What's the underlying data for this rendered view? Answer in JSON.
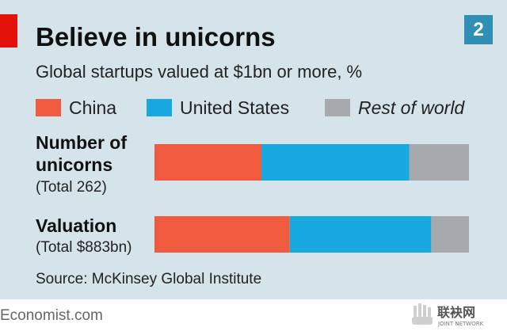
{
  "header": {
    "title": "Believe in unicorns",
    "badge": "2",
    "subtitle": "Global startups valued at $1bn or more, %"
  },
  "legend": [
    {
      "label": "China",
      "color": "#f05a3e",
      "italic": false
    },
    {
      "label": "United States",
      "color": "#18a8e0",
      "italic": false
    },
    {
      "label": "Rest of world",
      "color": "#a7a9ad",
      "italic": true
    }
  ],
  "rows": [
    {
      "label_line1": "Number of",
      "label_line2": "unicorns",
      "total": "(Total 262)"
    },
    {
      "label_line1": "Valuation",
      "label_line2": "",
      "total": "(Total $883bn)"
    }
  ],
  "source": "Source: McKinsey Global Institute",
  "footer": {
    "brand": "Economist.com",
    "watermark": "联袂网",
    "watermark_sub": "JOINT NETWORK"
  },
  "chart_data": {
    "type": "bar",
    "orientation": "horizontal",
    "stacked": true,
    "unit": "%",
    "categories": [
      "Number of unicorns",
      "Valuation"
    ],
    "series": [
      {
        "name": "China",
        "color": "#f05a3e",
        "values": [
          34,
          43
        ]
      },
      {
        "name": "United States",
        "color": "#18a8e0",
        "values": [
          47,
          45
        ]
      },
      {
        "name": "Rest of world",
        "color": "#a7a9ad",
        "values": [
          19,
          12
        ]
      }
    ],
    "xlim": [
      0,
      100
    ],
    "grid": false,
    "legend_position": "top"
  }
}
